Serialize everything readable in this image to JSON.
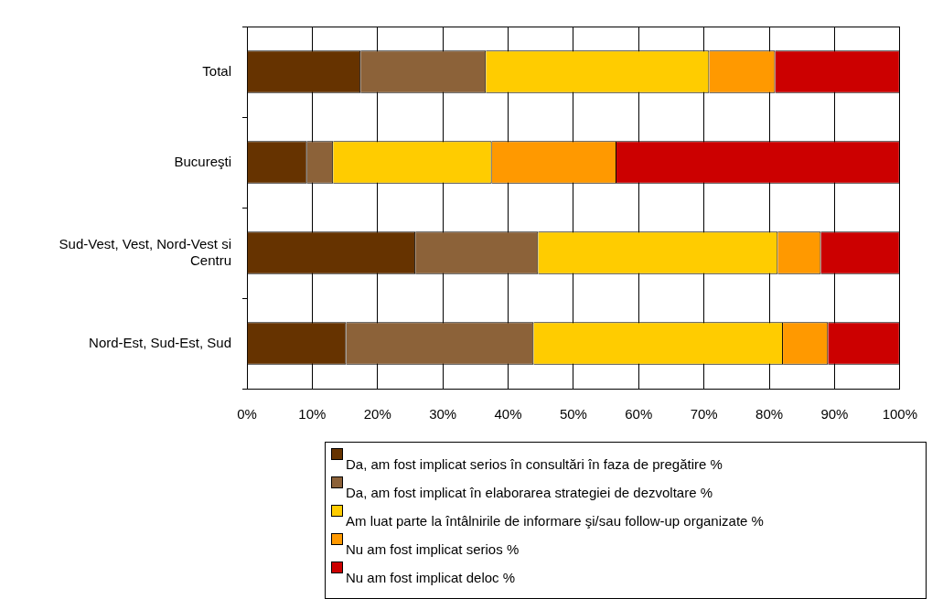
{
  "chart_data": {
    "type": "bar",
    "orientation": "horizontal",
    "stacked": true,
    "categories": [
      "Total",
      "Bucureşti",
      "Sud-Vest, Vest, Nord-Vest si Centru",
      "Nord-Est, Sud-Est, Sud"
    ],
    "series": [
      {
        "name": "Da, am fost implicat serios în consultări în faza de pregătire %",
        "color": "#663300",
        "values": [
          17.4,
          9.2,
          25.8,
          15.2
        ]
      },
      {
        "name": "Da, am fost implicat în elaborarea strategiei de dezvoltare %",
        "color": "#8c6239",
        "values": [
          19.2,
          4.0,
          18.8,
          28.7
        ]
      },
      {
        "name": "Am luat parte la întâlnirile de informare şi/sau follow-up organizate %",
        "color": "#ffcc00",
        "values": [
          34.2,
          24.3,
          36.7,
          38.2
        ]
      },
      {
        "name": "Nu am fost implicat serios %",
        "color": "#ff9900",
        "values": [
          10.1,
          19.1,
          6.6,
          6.9
        ]
      },
      {
        "name": "Nu am fost implicat deloc %",
        "color": "#cc0000",
        "values": [
          19.1,
          43.4,
          12.1,
          11.0
        ]
      }
    ],
    "xlim": [
      0,
      100
    ],
    "xticks": [
      {
        "value": 0,
        "label": "0%"
      },
      {
        "value": 10,
        "label": "10%"
      },
      {
        "value": 20,
        "label": "20%"
      },
      {
        "value": 30,
        "label": "30%"
      },
      {
        "value": 40,
        "label": "40%"
      },
      {
        "value": 50,
        "label": "50%"
      },
      {
        "value": 60,
        "label": "60%"
      },
      {
        "value": 70,
        "label": "70%"
      },
      {
        "value": 80,
        "label": "80%"
      },
      {
        "value": 90,
        "label": "90%"
      },
      {
        "value": 100,
        "label": "100%"
      }
    ],
    "grid": "x",
    "legend": "bottom"
  }
}
